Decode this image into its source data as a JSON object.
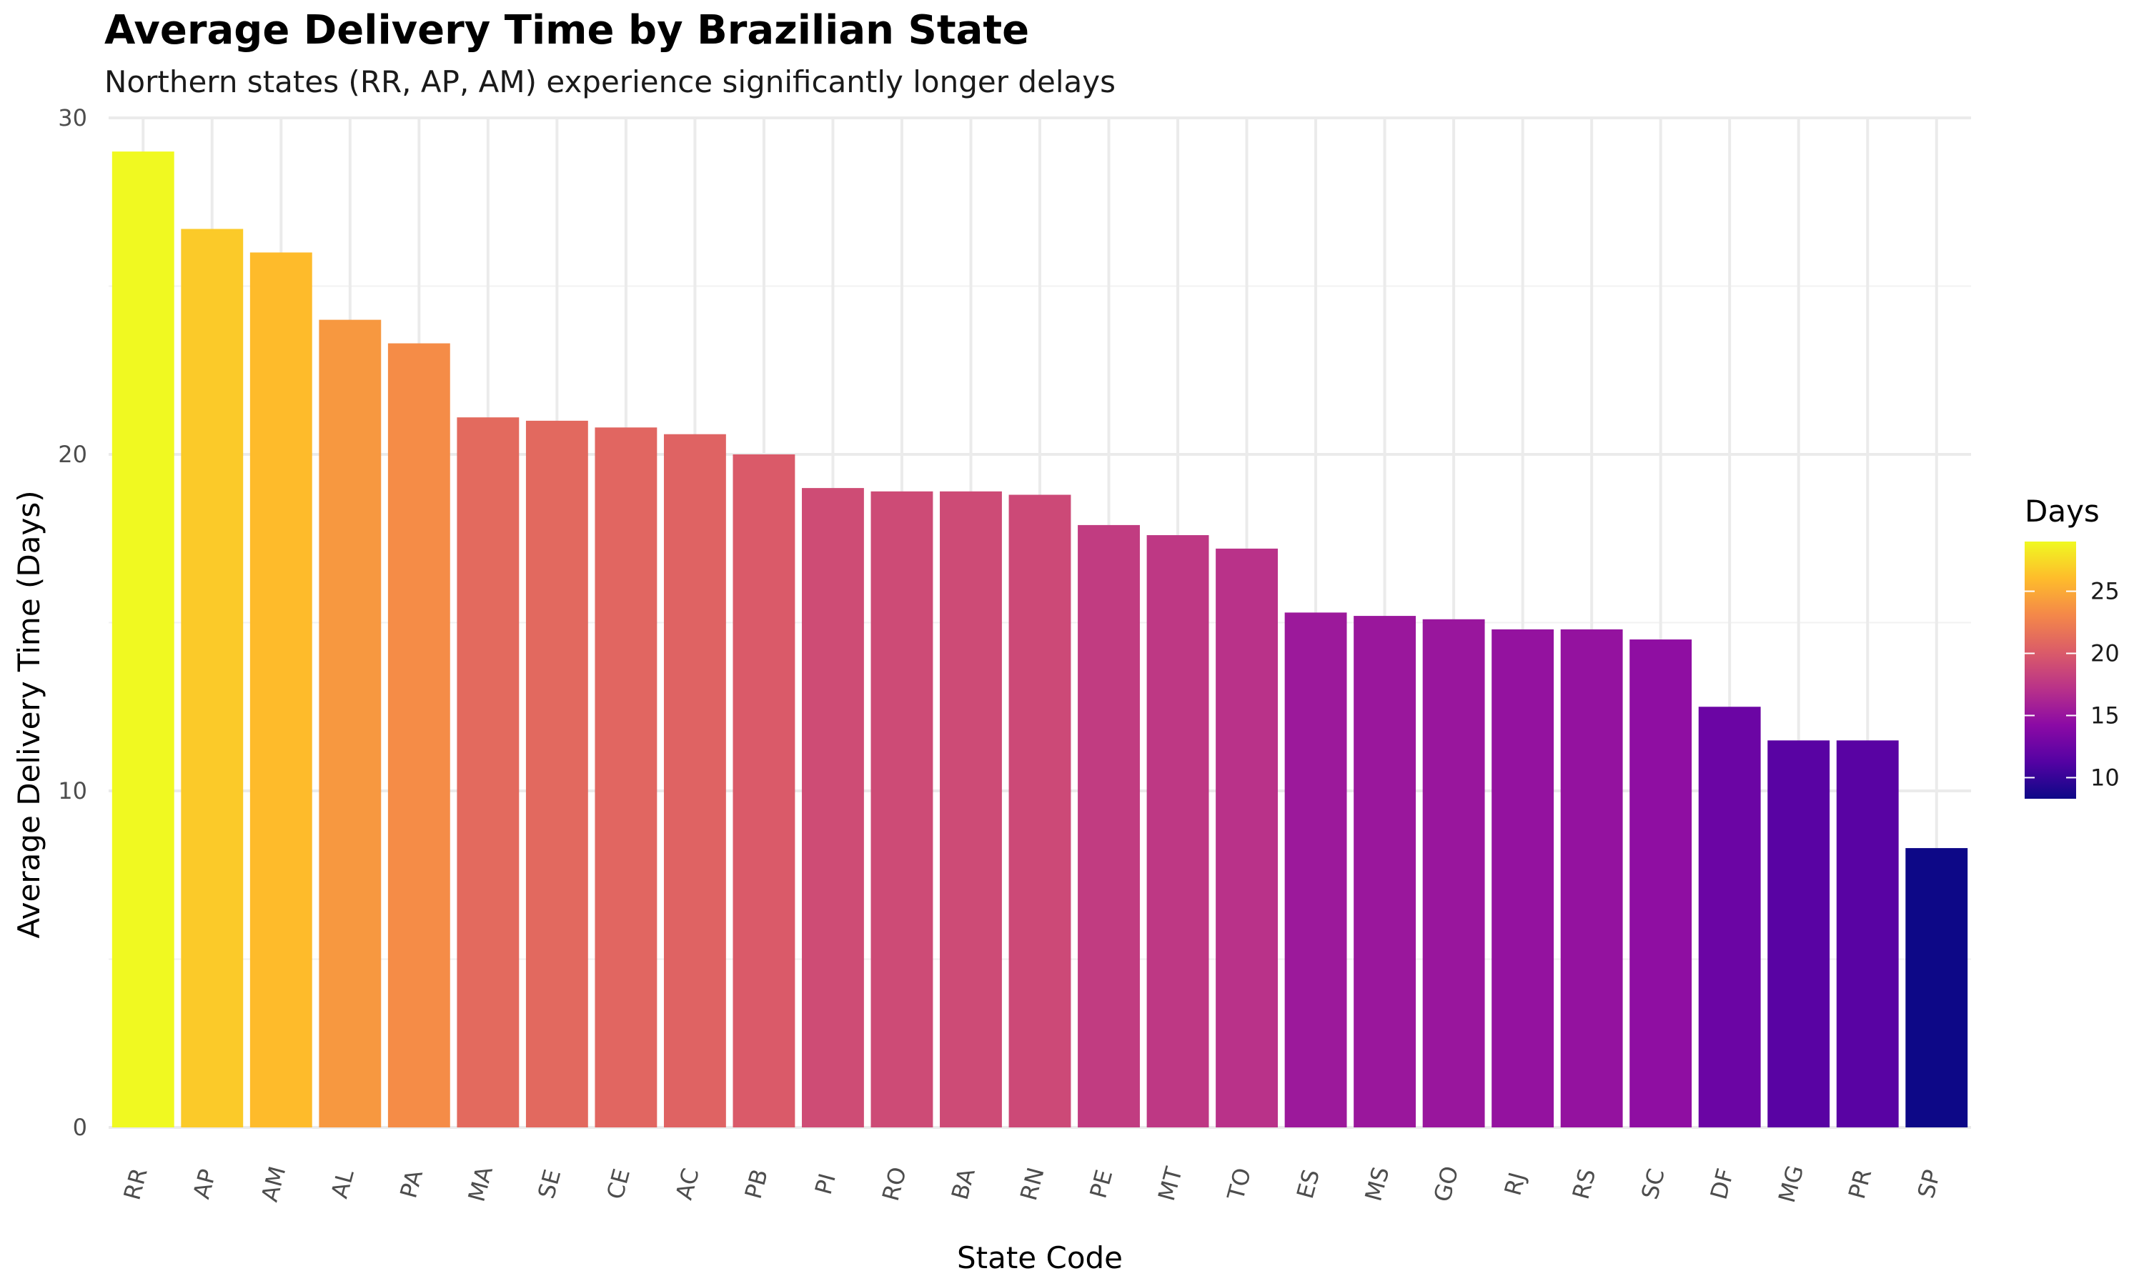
{
  "chart_data": {
    "type": "bar",
    "title": "Average Delivery Time by Brazilian State",
    "subtitle": "Northern states (RR, AP, AM) experience significantly longer delays",
    "xlabel": "State Code",
    "ylabel": "Average Delivery Time (Days)",
    "ylim": [
      0,
      30
    ],
    "yticks": [
      0,
      10,
      20,
      30
    ],
    "grid": true,
    "categories": [
      "RR",
      "AP",
      "AM",
      "AL",
      "PA",
      "MA",
      "SE",
      "CE",
      "AC",
      "PB",
      "PI",
      "RO",
      "BA",
      "RN",
      "PE",
      "MT",
      "TO",
      "ES",
      "MS",
      "GO",
      "RJ",
      "RS",
      "SC",
      "DF",
      "MG",
      "PR",
      "SP"
    ],
    "values": [
      29.0,
      26.7,
      26.0,
      24.0,
      23.3,
      21.1,
      21.0,
      20.8,
      20.6,
      20.0,
      19.0,
      18.9,
      18.9,
      18.8,
      17.9,
      17.6,
      17.2,
      15.3,
      15.2,
      15.1,
      14.8,
      14.8,
      14.5,
      12.5,
      11.5,
      11.5,
      8.3
    ],
    "legend": {
      "title": "Days",
      "placement": "right",
      "ticks": [
        10,
        15,
        20,
        25
      ],
      "range": [
        8.3,
        29.0
      ],
      "colormap": "plasma"
    }
  }
}
